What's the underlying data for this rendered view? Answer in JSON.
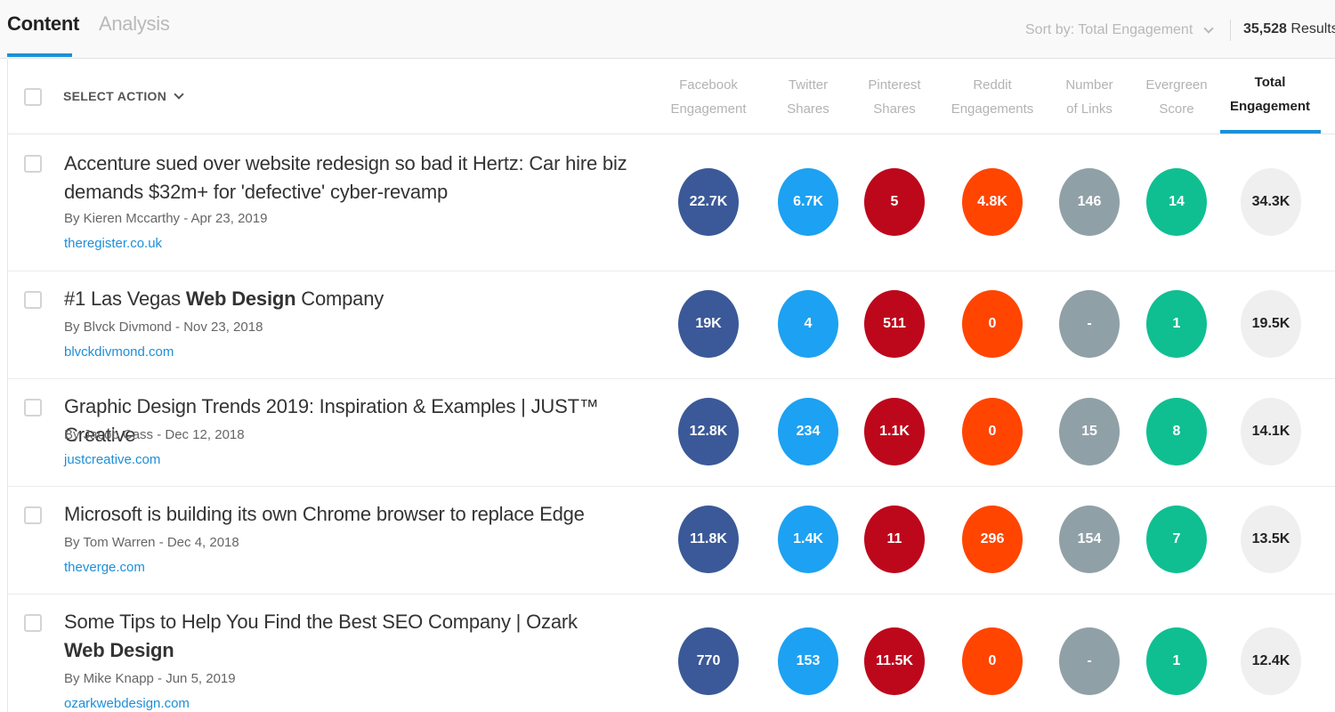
{
  "tabs": [
    {
      "label": "Content",
      "active": true
    },
    {
      "label": "Analysis",
      "active": false
    }
  ],
  "sort": {
    "label": "Sort by: Total Engagement"
  },
  "results": {
    "count": "35,528",
    "label": "Results"
  },
  "table": {
    "select_action": "SELECT ACTION",
    "columns": [
      {
        "line1": "Facebook",
        "line2": "Engagement"
      },
      {
        "line1": "Twitter",
        "line2": "Shares"
      },
      {
        "line1": "Pinterest",
        "line2": "Shares"
      },
      {
        "line1": "Reddit",
        "line2": "Engagements"
      },
      {
        "line1": "Number",
        "line2": "of Links"
      },
      {
        "line1": "Evergreen",
        "line2": "Score"
      },
      {
        "line1": "Total",
        "line2": "Engagement"
      }
    ],
    "rows": [
      {
        "title_parts": [
          [
            "Accenture sued over website redesign so bad it Hertz: Car hire biz demands $32m+ for 'defective' cyber-revamp",
            false
          ]
        ],
        "meta": "By Kieren Mccarthy - Apr 23, 2019",
        "domain": "theregister.co.uk",
        "metrics": [
          "22.7K",
          "6.7K",
          "5",
          "4.8K",
          "146",
          "14",
          "34.3K"
        ]
      },
      {
        "title_parts": [
          [
            "#1 Las Vegas ",
            false
          ],
          [
            "Web Design",
            true
          ],
          [
            " Company",
            false
          ]
        ],
        "meta": "By Blvck Divmond - Nov 23, 2018",
        "domain": "blvckdivmond.com",
        "metrics": [
          "19K",
          "4",
          "511",
          "0",
          "-",
          "1",
          "19.5K"
        ]
      },
      {
        "title_parts": [
          [
            "Graphic Design Trends 2019: Inspiration & Examples | JUST™ Creative",
            false
          ]
        ],
        "meta": "By Jacob Cass - Dec 12, 2018",
        "domain": "justcreative.com",
        "metrics": [
          "12.8K",
          "234",
          "1.1K",
          "0",
          "15",
          "8",
          "14.1K"
        ]
      },
      {
        "title_parts": [
          [
            "Microsoft is building its own Chrome browser to replace Edge",
            false
          ]
        ],
        "meta": "By Tom Warren - Dec 4, 2018",
        "domain": "theverge.com",
        "metrics": [
          "11.8K",
          "1.4K",
          "11",
          "296",
          "154",
          "7",
          "13.5K"
        ]
      },
      {
        "title_parts": [
          [
            "Some Tips to Help You Find the Best SEO Company | Ozark ",
            false
          ],
          [
            "Web Design",
            true
          ]
        ],
        "meta": "By Mike Knapp - Jun 5, 2019",
        "domain": "ozarkwebdesign.com",
        "metrics": [
          "770",
          "153",
          "11.5K",
          "0",
          "-",
          "1",
          "12.4K"
        ]
      }
    ]
  },
  "colors": {
    "accent": "#1d90d8",
    "facebook": "#3b5998",
    "twitter": "#1da1f2",
    "pinterest": "#bd081c",
    "reddit": "#ff4500",
    "links": "#90a0a7",
    "evergreen": "#0fbf91",
    "total": "#efefef"
  }
}
